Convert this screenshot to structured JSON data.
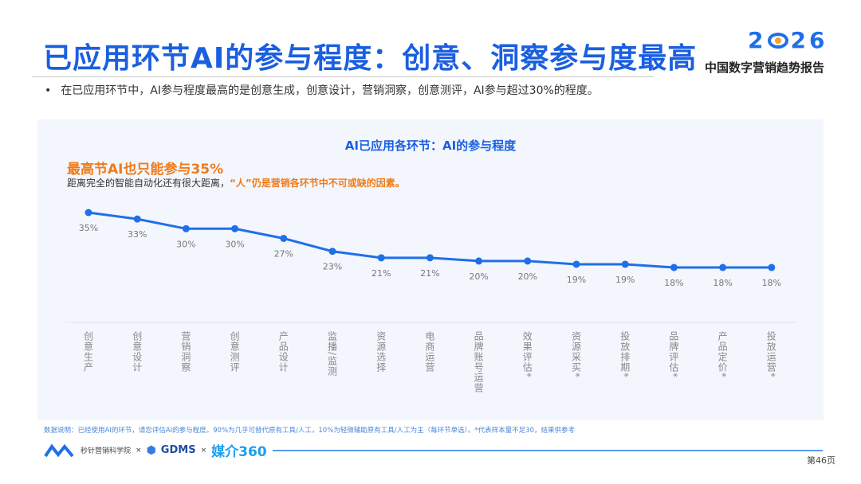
{
  "header": {
    "title": "已应用环节AI的参与程度：创意、洞察参与度最高",
    "logo_year_left": "2",
    "logo_year_right": "26",
    "logo_subtitle": "中国数字营销趋势报告"
  },
  "bullet": "在已应用环节中，AI参与程度最高的是创意生成，创意设计，营销洞察，创意测评，AI参与超过30%的程度。",
  "highlight": "最高节AI也只能参与35%",
  "subtext_plain": "距离完全的智能自动化还有很大距离，",
  "subtext_emph": "“人”仍是营销各环节中不可或缺的因素。",
  "chart_data": {
    "type": "line",
    "title": "AI已应用各环节：AI的参与程度",
    "categories": [
      "创意生产",
      "创意设计",
      "营销洞察",
      "创意测评",
      "产品设计",
      "监播/监测",
      "资源选择",
      "电商运营",
      "品牌账号运营",
      "效果评估*",
      "资源采买*",
      "投放排期*",
      "品牌评估*",
      "产品定价*",
      "投放运营*"
    ],
    "values": [
      35,
      33,
      30,
      30,
      27,
      23,
      21,
      21,
      20,
      20,
      19,
      19,
      18,
      18,
      18
    ],
    "value_labels": [
      "35%",
      "33%",
      "30%",
      "30%",
      "27%",
      "23%",
      "21%",
      "21%",
      "20%",
      "20%",
      "19%",
      "19%",
      "18%",
      "18%",
      "18%"
    ],
    "unit": "%",
    "color": "#1f6fe8"
  },
  "note": "数据说明：已经使用AI的环节，请您评估AI的参与程度。90%为几乎可替代原有工具/人工，10%为轻微辅助原有工具/人工为主（每环节单选）。*代表样本量不足30，结果供参考",
  "footer": {
    "org1": "秒针营销科学院",
    "sep": "×",
    "org2": "GDMS",
    "org3": "媒介360",
    "page": "第46页"
  }
}
